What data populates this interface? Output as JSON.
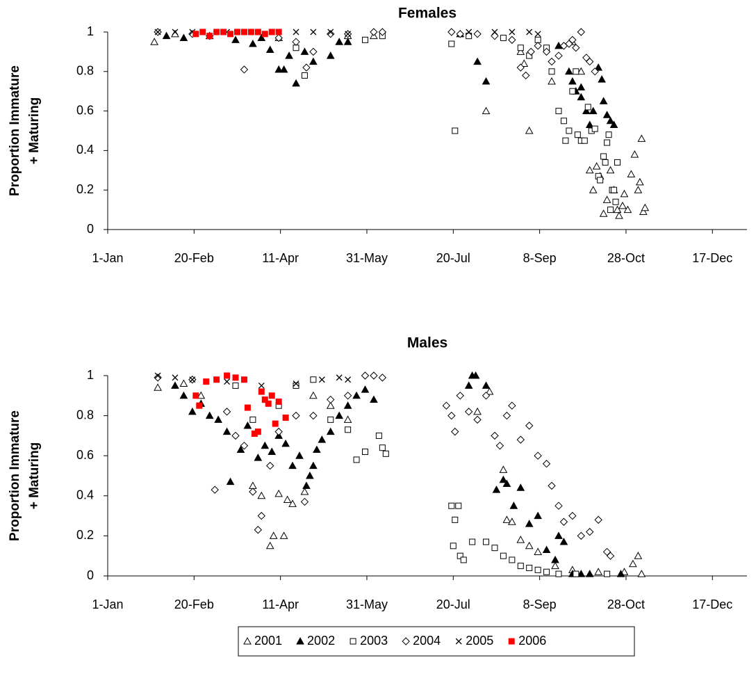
{
  "chart_data": [
    {
      "type": "scatter",
      "title": "Females",
      "ylabel": [
        "Proportion Immature",
        "+ Maturing"
      ],
      "xlim": [
        1,
        371
      ],
      "ylim": [
        0,
        1
      ],
      "xticks": [
        {
          "value": 1,
          "label": "1-Jan"
        },
        {
          "value": 51,
          "label": "20-Feb"
        },
        {
          "value": 101,
          "label": "11-Apr"
        },
        {
          "value": 151,
          "label": "31-May"
        },
        {
          "value": 201,
          "label": "20-Jul"
        },
        {
          "value": 251,
          "label": "8-Sep"
        },
        {
          "value": 301,
          "label": "28-Oct"
        },
        {
          "value": 351,
          "label": "17-Dec"
        }
      ],
      "yticks": [
        0,
        0.2,
        0.4,
        0.6,
        0.8,
        1
      ],
      "series": [
        {
          "name": "2001",
          "color": "#000000",
          "marker": "triangle-open",
          "x": [
            28,
            40,
            60,
            100,
            140,
            155,
            220,
            240,
            242,
            245,
            258,
            270,
            275,
            280,
            282,
            284,
            286,
            288,
            290,
            292,
            294,
            296,
            297,
            299,
            300,
            302,
            304,
            306,
            308,
            309,
            310,
            311,
            312
          ],
          "values": [
            0.95,
            0.99,
            0.98,
            0.97,
            0.98,
            0.98,
            0.6,
            0.9,
            0.84,
            0.5,
            0.75,
            0.95,
            0.8,
            0.3,
            0.2,
            0.32,
            0.27,
            0.08,
            0.15,
            0.3,
            0.2,
            0.1,
            0.07,
            0.12,
            0.18,
            0.1,
            0.28,
            0.38,
            0.2,
            0.24,
            0.46,
            0.09,
            0.11
          ]
        },
        {
          "name": "2002",
          "color": "#000000",
          "marker": "triangle-filled",
          "x": [
            35,
            45,
            60,
            75,
            85,
            90,
            95,
            100,
            103,
            106,
            110,
            115,
            120,
            130,
            135,
            140,
            205,
            215,
            220,
            262,
            268,
            270,
            272,
            275,
            275,
            278,
            280,
            282,
            285,
            287,
            288,
            290,
            292,
            294
          ],
          "values": [
            0.98,
            0.97,
            0.98,
            0.96,
            0.94,
            0.97,
            0.91,
            0.81,
            0.81,
            0.88,
            0.74,
            0.9,
            0.85,
            0.88,
            0.95,
            0.95,
            0.99,
            0.85,
            0.75,
            0.93,
            0.8,
            0.75,
            0.7,
            0.67,
            0.72,
            0.6,
            0.53,
            0.6,
            0.82,
            0.76,
            0.65,
            0.58,
            0.55,
            0.53
          ]
        },
        {
          "name": "2003",
          "color": "#000000",
          "marker": "square-open",
          "x": [
            110,
            115,
            150,
            160,
            200,
            202,
            210,
            230,
            240,
            245,
            250,
            255,
            258,
            262,
            265,
            266,
            268,
            270,
            272,
            273,
            275,
            277,
            279,
            281,
            283,
            285,
            286,
            288,
            289,
            290,
            291,
            292,
            293,
            294,
            295,
            296
          ],
          "values": [
            0.92,
            0.78,
            0.96,
            0.98,
            0.94,
            0.5,
            0.98,
            0.97,
            0.92,
            0.88,
            0.96,
            0.92,
            0.8,
            0.6,
            0.55,
            0.45,
            0.5,
            0.7,
            0.8,
            0.48,
            0.45,
            0.45,
            0.62,
            0.5,
            0.51,
            0.27,
            0.25,
            0.37,
            0.34,
            0.44,
            0.48,
            0.1,
            0.2,
            0.2,
            0.14,
            0.34
          ]
        },
        {
          "name": "2004",
          "color": "#000000",
          "marker": "diamond-open",
          "x": [
            30,
            50,
            60,
            80,
            100,
            110,
            116,
            120,
            130,
            140,
            155,
            160,
            200,
            205,
            215,
            225,
            235,
            240,
            243,
            246,
            250,
            255,
            258,
            262,
            265,
            268,
            270,
            272,
            275,
            278,
            280,
            283
          ],
          "values": [
            1,
            0.99,
            0.98,
            0.81,
            0.97,
            0.95,
            0.82,
            0.9,
            0.99,
            0.99,
            1,
            1,
            1,
            0.99,
            0.99,
            0.98,
            0.96,
            0.82,
            0.78,
            0.9,
            0.93,
            0.9,
            0.85,
            0.88,
            0.93,
            0.94,
            0.96,
            0.92,
            1,
            0.87,
            0.85,
            0.8
          ]
        },
        {
          "name": "2005",
          "color": "#000000",
          "marker": "cross",
          "x": [
            30,
            40,
            50,
            70,
            80,
            100,
            110,
            120,
            130,
            140,
            210,
            225,
            235,
            245,
            250
          ],
          "values": [
            1,
            1,
            1,
            1,
            1,
            1,
            1,
            1,
            1,
            0.99,
            1,
            1,
            1,
            1,
            0.99
          ]
        },
        {
          "name": "2006",
          "color": "#ff0000",
          "marker": "square-filled",
          "x": [
            52,
            56,
            60,
            64,
            68,
            72,
            76,
            80,
            84,
            88,
            92,
            96,
            100
          ],
          "values": [
            0.99,
            1,
            0.98,
            1,
            1,
            0.99,
            1,
            1,
            1,
            1,
            0.99,
            1,
            1
          ]
        }
      ]
    },
    {
      "type": "scatter",
      "title": "Males",
      "ylabel": [
        "Proportion Immature",
        "+ Maturing"
      ],
      "xlim": [
        1,
        371
      ],
      "ylim": [
        0,
        1
      ],
      "xticks": [
        {
          "value": 1,
          "label": "1-Jan"
        },
        {
          "value": 51,
          "label": "20-Feb"
        },
        {
          "value": 101,
          "label": "11-Apr"
        },
        {
          "value": 151,
          "label": "31-May"
        },
        {
          "value": 201,
          "label": "20-Jul"
        },
        {
          "value": 251,
          "label": "8-Sep"
        },
        {
          "value": 301,
          "label": "28-Oct"
        },
        {
          "value": 351,
          "label": "17-Dec"
        }
      ],
      "yticks": [
        0,
        0.2,
        0.4,
        0.6,
        0.8,
        1
      ],
      "series": [
        {
          "name": "2001",
          "color": "#000000",
          "marker": "triangle-open",
          "x": [
            30,
            45,
            55,
            85,
            90,
            95,
            97,
            100,
            103,
            105,
            108,
            115,
            120,
            130,
            140,
            215,
            222,
            230,
            232,
            235,
            240,
            245,
            250,
            260,
            270,
            285,
            300,
            305,
            308,
            310
          ],
          "values": [
            0.94,
            0.96,
            0.9,
            0.45,
            0.4,
            0.15,
            0.2,
            0.41,
            0.2,
            0.38,
            0.36,
            0.42,
            0.9,
            0.85,
            0.78,
            0.82,
            0.92,
            0.53,
            0.28,
            0.27,
            0.18,
            0.15,
            0.12,
            0.05,
            0.03,
            0.02,
            0.02,
            0.06,
            0.1,
            0.01
          ]
        },
        {
          "name": "2002",
          "color": "#000000",
          "marker": "triangle-filled",
          "x": [
            40,
            45,
            50,
            55,
            60,
            65,
            70,
            72,
            78,
            82,
            88,
            92,
            96,
            100,
            104,
            108,
            112,
            116,
            118,
            120,
            122,
            125,
            130,
            135,
            140,
            145,
            150,
            155,
            210,
            212,
            214,
            220,
            226,
            230,
            232,
            236,
            240,
            245,
            250,
            255,
            260,
            262,
            265,
            270,
            275,
            280,
            298
          ],
          "values": [
            0.95,
            0.9,
            0.82,
            0.86,
            0.8,
            0.78,
            0.72,
            0.47,
            0.63,
            0.75,
            0.59,
            0.65,
            0.62,
            0.7,
            0.66,
            0.55,
            0.6,
            0.45,
            0.5,
            0.55,
            0.63,
            0.68,
            0.72,
            0.8,
            0.85,
            0.9,
            0.93,
            0.88,
            0.95,
            1,
            1,
            0.95,
            0.43,
            0.48,
            0.46,
            0.35,
            0.44,
            0.26,
            0.3,
            0.13,
            0.08,
            0.2,
            0.17,
            0.01,
            0.01,
            0.01,
            0.01
          ]
        },
        {
          "name": "2003",
          "color": "#000000",
          "marker": "square-open",
          "x": [
            75,
            85,
            100,
            110,
            120,
            130,
            140,
            145,
            150,
            158,
            160,
            162,
            200,
            201,
            202,
            204,
            205,
            207,
            212,
            220,
            225,
            230,
            235,
            240,
            245,
            250,
            255,
            262,
            272,
            290
          ],
          "values": [
            0.95,
            0.78,
            0.85,
            0.95,
            0.98,
            0.78,
            0.73,
            0.58,
            0.62,
            0.7,
            0.64,
            0.61,
            0.35,
            0.15,
            0.28,
            0.35,
            0.1,
            0.08,
            0.17,
            0.17,
            0.14,
            0.1,
            0.08,
            0.05,
            0.04,
            0.03,
            0.02,
            0.01,
            0.01,
            0.01
          ]
        },
        {
          "name": "2004",
          "color": "#000000",
          "marker": "diamond-open",
          "x": [
            30,
            50,
            63,
            70,
            75,
            80,
            85,
            88,
            90,
            95,
            100,
            110,
            115,
            120,
            130,
            140,
            150,
            155,
            160,
            197,
            200,
            202,
            205,
            210,
            215,
            220,
            225,
            228,
            232,
            235,
            240,
            245,
            250,
            255,
            258,
            262,
            265,
            270,
            275,
            280,
            285,
            290,
            292
          ],
          "values": [
            0.99,
            0.98,
            0.43,
            0.82,
            0.7,
            0.65,
            0.42,
            0.23,
            0.3,
            0.55,
            0.72,
            0.8,
            0.37,
            0.8,
            0.88,
            0.9,
            1,
            1,
            0.99,
            0.85,
            0.8,
            0.72,
            0.9,
            0.82,
            0.78,
            0.9,
            0.7,
            0.65,
            0.8,
            0.85,
            0.68,
            0.75,
            0.6,
            0.56,
            0.45,
            0.35,
            0.27,
            0.3,
            0.2,
            0.22,
            0.28,
            0.12,
            0.1
          ]
        },
        {
          "name": "2005",
          "color": "#000000",
          "marker": "cross",
          "x": [
            30,
            40,
            50,
            70,
            90,
            110,
            125,
            135,
            140
          ],
          "values": [
            1,
            0.99,
            0.98,
            0.97,
            0.95,
            0.96,
            0.98,
            0.99,
            0.98
          ]
        },
        {
          "name": "2006",
          "color": "#ff0000",
          "marker": "square-filled",
          "x": [
            52,
            54,
            58,
            64,
            70,
            75,
            80,
            82,
            86,
            88,
            90,
            92,
            94,
            96,
            98,
            100,
            104
          ],
          "values": [
            0.9,
            0.85,
            0.97,
            0.98,
            1,
            0.99,
            0.98,
            0.84,
            0.71,
            0.72,
            0.92,
            0.88,
            0.86,
            0.9,
            0.76,
            0.87,
            0.79
          ]
        }
      ]
    }
  ]
}
